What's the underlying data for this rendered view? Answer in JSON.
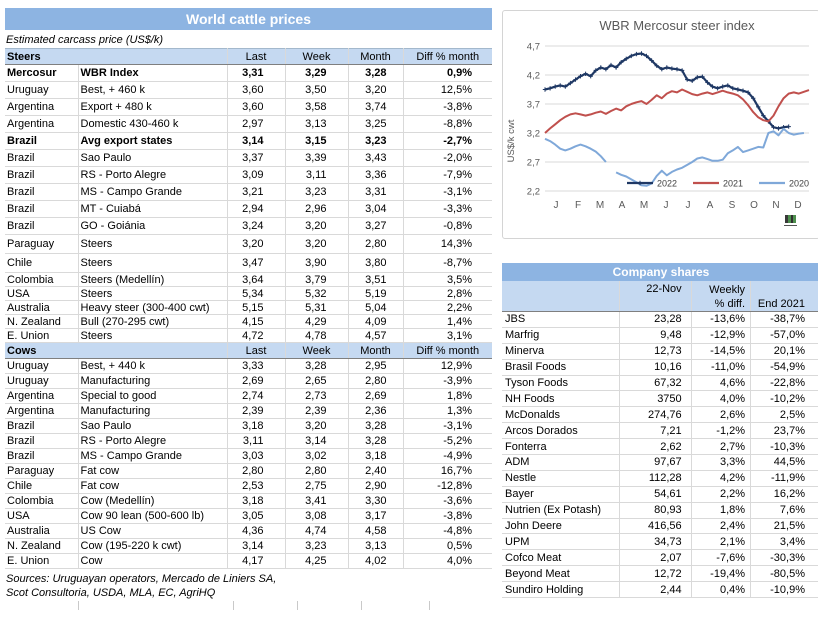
{
  "colors": {
    "title_bar": "#8db4e2",
    "section_header_fill": "#c5d9f1",
    "grid_line": "#d9d9d9",
    "series_2022": "#1f3864",
    "series_2021": "#c0504d",
    "series_2020": "#7fa8d9",
    "chart_text": "#595959"
  },
  "left_table": {
    "title": "World cattle prices",
    "subtitle": "Estimated carcass price (US$/k)",
    "columns": [
      "Last",
      "Week",
      "Month",
      "Diff % month"
    ],
    "sections": [
      {
        "name": "Steers",
        "rows": [
          [
            "Mercosur",
            "WBR Index",
            "3,31",
            "3,29",
            "3,28",
            "0,9%",
            1
          ],
          [
            "Uruguay",
            "Best, + 460 k",
            "3,60",
            "3,50",
            "3,20",
            "12,5%",
            0
          ],
          [
            "Argentina",
            "Export + 480 k",
            "3,60",
            "3,58",
            "3,74",
            "-3,8%",
            0
          ],
          [
            "Argentina",
            "Domestic 430-460 k",
            "2,97",
            "3,13",
            "3,25",
            "-8,8%",
            0
          ],
          [
            "Brazil",
            "Avg export states",
            "3,14",
            "3,15",
            "3,23",
            "-2,7%",
            1
          ],
          [
            "Brazil",
            "Sao Paulo",
            "3,37",
            "3,39",
            "3,43",
            "-2,0%",
            0
          ],
          [
            "Brazil",
            "RS - Porto Alegre",
            "3,09",
            "3,11",
            "3,36",
            "-7,9%",
            0
          ],
          [
            "Brazil",
            "MS - Campo Grande",
            "3,21",
            "3,23",
            "3,31",
            "-3,1%",
            0
          ],
          [
            "Brazil",
            "MT - Cuiabá",
            "2,94",
            "2,96",
            "3,04",
            "-3,3%",
            0
          ],
          [
            "Brazil",
            "GO - Goiánia",
            "3,24",
            "3,20",
            "3,27",
            "-0,8%",
            0
          ],
          [
            "Paraguay",
            "Steers",
            "3,20",
            "3,20",
            "2,80",
            "14,3%",
            0
          ],
          [
            "Chile",
            "Steers",
            "3,47",
            "3,90",
            "3,80",
            "-8,7%",
            0
          ],
          [
            "Colombia",
            "Steers (Medellín)",
            "3,64",
            "3,79",
            "3,51",
            "3,5%",
            0
          ],
          [
            "USA",
            "Steers",
            "5,34",
            "5,32",
            "5,19",
            "2,8%",
            0
          ],
          [
            "Australia",
            "Heavy steer (300-400 cwt)",
            "5,15",
            "5,31",
            "5,04",
            "2,2%",
            0
          ],
          [
            "N. Zealand",
            "Bull (270-295 cwt)",
            "4,15",
            "4,29",
            "4,09",
            "1,4%",
            0
          ],
          [
            "E. Union",
            "Steers",
            "4,72",
            "4,78",
            "4,57",
            "3,1%",
            0
          ]
        ]
      },
      {
        "name": "Cows",
        "rows": [
          [
            "Uruguay",
            "Best, + 440 k",
            "3,33",
            "3,28",
            "2,95",
            "12,9%",
            0
          ],
          [
            "Uruguay",
            "Manufacturing",
            "2,69",
            "2,65",
            "2,80",
            "-3,9%",
            0
          ],
          [
            "Argentina",
            "Special to good",
            "2,74",
            "2,73",
            "2,69",
            "1,8%",
            0
          ],
          [
            "Argentina",
            "Manufacturing",
            "2,39",
            "2,39",
            "2,36",
            "1,3%",
            0
          ],
          [
            "Brazil",
            "Sao Paulo",
            "3,18",
            "3,20",
            "3,28",
            "-3,1%",
            0
          ],
          [
            "Brazil",
            "RS - Porto Alegre",
            "3,11",
            "3,14",
            "3,28",
            "-5,2%",
            0
          ],
          [
            "Brazil",
            "MS - Campo Grande",
            "3,03",
            "3,02",
            "3,18",
            "-4,9%",
            0
          ],
          [
            "Paraguay",
            "Fat cow",
            "2,80",
            "2,80",
            "2,40",
            "16,7%",
            0
          ],
          [
            "Chile",
            "Fat cow",
            "2,53",
            "2,75",
            "2,90",
            "-12,8%",
            0
          ],
          [
            "Colombia",
            "Cow (Medellín)",
            "3,18",
            "3,41",
            "3,30",
            "-3,6%",
            0
          ],
          [
            "USA",
            "Cow 90 lean (500-600 lb)",
            "3,05",
            "3,08",
            "3,17",
            "-3,8%",
            0
          ],
          [
            "Australia",
            "US Cow",
            "4,36",
            "4,74",
            "4,58",
            "-4,8%",
            0
          ],
          [
            "N. Zealand",
            "Cow (195-220 k cwt)",
            "3,14",
            "3,23",
            "3,13",
            "0,5%",
            0
          ],
          [
            "E. Union",
            "Cow",
            "4,17",
            "4,25",
            "4,02",
            "4,0%",
            0
          ]
        ]
      }
    ],
    "sources": [
      "Sources: Uruguayan operators, Mercado de Liniers SA,",
      "Scot Consultoria, USDA, MLA, EC, AgriHQ"
    ]
  },
  "chart_data": {
    "type": "line",
    "title": "WBR Mercosur steer index",
    "xlabel": "",
    "ylabel": "US$/k cwt",
    "ylim": [
      2.2,
      4.7
    ],
    "yticks": [
      4.7,
      4.2,
      3.7,
      3.2,
      2.7,
      2.2
    ],
    "x_months": [
      "J",
      "F",
      "M",
      "A",
      "M",
      "J",
      "J",
      "A",
      "S",
      "O",
      "N",
      "D"
    ],
    "grid": true,
    "legend_position": "inside-bottom-right",
    "x_unit": "weeks_of_year",
    "weeks_per_year": 52,
    "series": [
      {
        "name": "2022",
        "color": "#1f3864",
        "marker": "plus",
        "values": [
          3.95,
          3.97,
          4.0,
          4.02,
          4.0,
          4.06,
          4.12,
          4.18,
          4.22,
          4.18,
          4.28,
          4.33,
          4.3,
          4.37,
          4.33,
          4.42,
          4.48,
          4.53,
          4.56,
          4.57,
          4.53,
          4.45,
          4.36,
          4.3,
          4.33,
          4.31,
          4.3,
          4.28,
          4.12,
          4.1,
          4.16,
          4.17,
          4.07,
          4.0,
          3.97,
          4.0,
          4.02,
          3.97,
          3.95,
          3.93,
          3.9,
          3.8,
          3.65,
          3.5,
          3.4,
          3.3,
          3.28,
          3.3,
          3.31
        ]
      },
      {
        "name": "2021",
        "color": "#c0504d",
        "marker": "none",
        "values": [
          3.2,
          3.28,
          3.35,
          3.42,
          3.48,
          3.52,
          3.54,
          3.52,
          3.5,
          3.52,
          3.55,
          3.57,
          3.53,
          3.58,
          3.62,
          3.59,
          3.66,
          3.7,
          3.73,
          3.75,
          3.7,
          3.77,
          3.85,
          3.8,
          3.88,
          3.92,
          3.9,
          3.95,
          3.91,
          3.87,
          3.85,
          3.88,
          3.9,
          3.87,
          3.9,
          3.93,
          3.9,
          3.88,
          3.85,
          3.78,
          3.68,
          3.56,
          3.47,
          3.42,
          3.4,
          3.5,
          3.66,
          3.8,
          3.88,
          3.9,
          3.88,
          3.91,
          3.94
        ]
      },
      {
        "name": "2020",
        "color": "#7fa8d9",
        "marker": "none",
        "values": [
          3.1,
          3.06,
          3.0,
          2.93,
          2.9,
          2.93,
          2.97,
          3.0,
          2.97,
          2.93,
          2.88,
          2.8,
          2.7,
          null,
          2.52,
          2.48,
          2.45,
          2.4,
          2.35,
          2.3,
          2.29,
          2.33,
          2.46,
          2.55,
          2.47,
          2.53,
          2.57,
          2.6,
          2.65,
          2.7,
          2.76,
          2.78,
          2.75,
          2.72,
          2.72,
          2.74,
          2.85,
          2.9,
          2.96,
          2.87,
          2.9,
          2.93,
          2.96,
          2.95,
          3.2,
          3.23,
          3.16,
          3.27,
          3.2,
          3.17,
          3.19,
          3.2
        ]
      }
    ]
  },
  "company_table": {
    "title": "Company shares",
    "headers": {
      "date": "22-Nov",
      "weekly_line1": "Weekly",
      "weekly_line2": "% diff.",
      "end": "End 2021"
    },
    "rows": [
      [
        "JBS",
        "23,28",
        "-13,6%",
        "-38,7%"
      ],
      [
        "Marfrig",
        "9,48",
        "-12,9%",
        "-57,0%"
      ],
      [
        "Minerva",
        "12,73",
        "-14,5%",
        "20,1%"
      ],
      [
        "Brasil Foods",
        "10,16",
        "-11,0%",
        "-54,9%"
      ],
      [
        "Tyson Foods",
        "67,32",
        "4,6%",
        "-22,8%"
      ],
      [
        "NH Foods",
        "3750",
        "4,0%",
        "-10,2%"
      ],
      [
        "McDonalds",
        "274,76",
        "2,6%",
        "2,5%"
      ],
      [
        "Arcos Dorados",
        "7,21",
        "-1,2%",
        "23,7%"
      ],
      [
        "Fonterra",
        "2,62",
        "2,7%",
        "-10,3%"
      ],
      [
        "ADM",
        "97,67",
        "3,3%",
        "44,5%"
      ],
      [
        "Nestle",
        "112,28",
        "4,2%",
        "-11,9%"
      ],
      [
        "Bayer",
        "54,61",
        "2,2%",
        "16,2%"
      ],
      [
        "Nutrien (Ex Potash)",
        "80,93",
        "1,8%",
        "7,6%"
      ],
      [
        "John Deere",
        "416,56",
        "2,4%",
        "21,5%"
      ],
      [
        "UPM",
        "34,73",
        "2,1%",
        "3,4%"
      ],
      [
        "Cofco Meat",
        "2,07",
        "-7,6%",
        "-30,3%"
      ],
      [
        "Beyond Meat",
        "12,72",
        "-19,4%",
        "-80,5%"
      ],
      [
        "Sundiro Holding",
        "2,44",
        "0,4%",
        "-10,9%"
      ]
    ]
  }
}
